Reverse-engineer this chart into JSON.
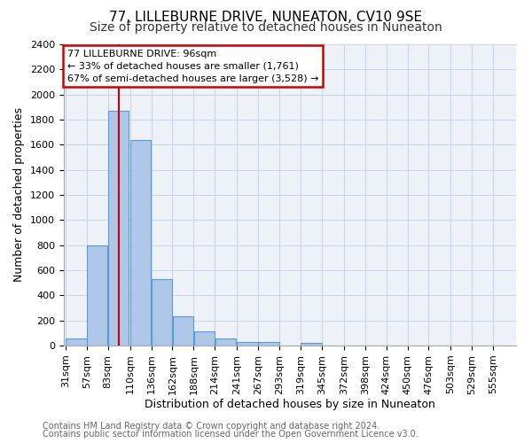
{
  "title": "77, LILLEBURNE DRIVE, NUNEATON, CV10 9SE",
  "subtitle": "Size of property relative to detached houses in Nuneaton",
  "xlabel": "Distribution of detached houses by size in Nuneaton",
  "ylabel": "Number of detached properties",
  "bar_labels": [
    "31sqm",
    "57sqm",
    "83sqm",
    "110sqm",
    "136sqm",
    "162sqm",
    "188sqm",
    "214sqm",
    "241sqm",
    "267sqm",
    "293sqm",
    "319sqm",
    "345sqm",
    "372sqm",
    "398sqm",
    "424sqm",
    "450sqm",
    "476sqm",
    "503sqm",
    "529sqm",
    "555sqm"
  ],
  "bar_values": [
    55,
    800,
    1870,
    1640,
    530,
    235,
    110,
    55,
    30,
    25,
    0,
    20,
    0,
    0,
    0,
    0,
    0,
    0,
    0,
    0,
    0
  ],
  "bar_color": "#aec6e8",
  "bar_edge_color": "#5b9bd5",
  "ylim": [
    0,
    2400
  ],
  "yticks": [
    0,
    200,
    400,
    600,
    800,
    1000,
    1200,
    1400,
    1600,
    1800,
    2000,
    2200,
    2400
  ],
  "property_line_x": 96,
  "property_line_label": "77 LILLEBURNE DRIVE: 96sqm",
  "annotation_line1": "← 33% of detached houses are smaller (1,761)",
  "annotation_line2": "67% of semi-detached houses are larger (3,528) →",
  "bin_edges": [
    31,
    57,
    83,
    110,
    136,
    162,
    188,
    214,
    241,
    267,
    293,
    319,
    345,
    372,
    398,
    424,
    450,
    476,
    503,
    529,
    555
  ],
  "bin_width": 26,
  "footer1": "Contains HM Land Registry data © Crown copyright and database right 2024.",
  "footer2": "Contains public sector information licensed under the Open Government Licence v3.0.",
  "background_color": "#ffffff",
  "plot_bg_color": "#eef2f8",
  "grid_color": "#c8d4e8",
  "title_fontsize": 11,
  "subtitle_fontsize": 10,
  "axis_label_fontsize": 9,
  "tick_fontsize": 8,
  "annotation_box_color": "#ffffff",
  "annotation_box_edge": "#cc0000",
  "red_line_color": "#cc0000",
  "footer_fontsize": 7,
  "footer_color": "#666666"
}
